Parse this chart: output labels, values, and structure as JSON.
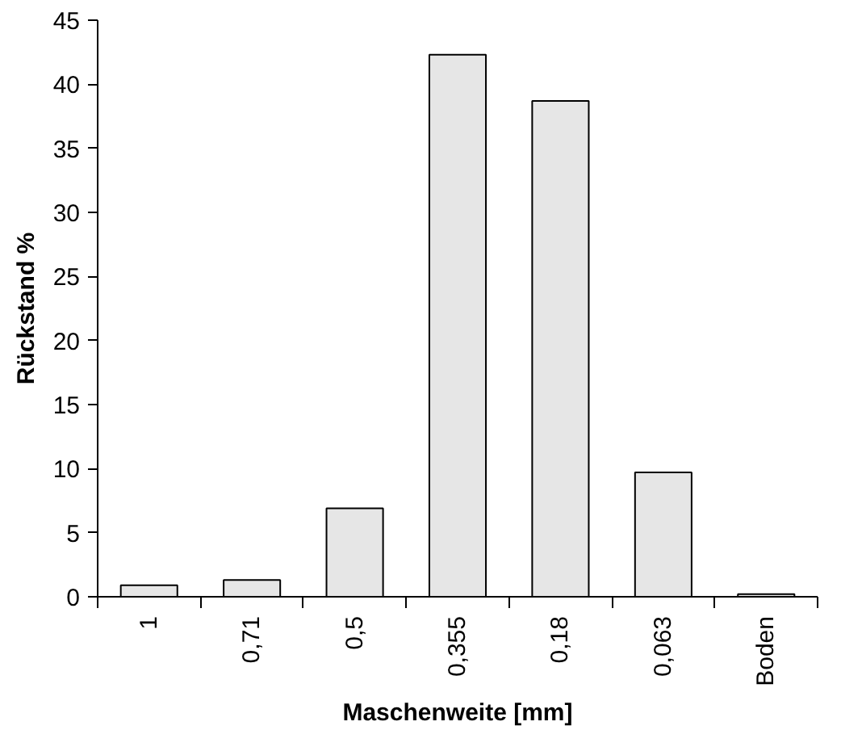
{
  "chart_data": {
    "type": "bar",
    "xlabel": "Maschenweite [mm]",
    "ylabel": "Rückstand %",
    "categories": [
      "1",
      "0,71",
      "0,5",
      "0,355",
      "0,18",
      "0,063",
      "Boden"
    ],
    "values": [
      0.9,
      1.3,
      6.9,
      42.3,
      38.7,
      9.7,
      0.2
    ],
    "color": "#e6e6e6",
    "ylim": [
      0,
      45
    ],
    "yticks": [
      0,
      5,
      10,
      15,
      20,
      25,
      30,
      35,
      40,
      45
    ],
    "grid": false
  }
}
